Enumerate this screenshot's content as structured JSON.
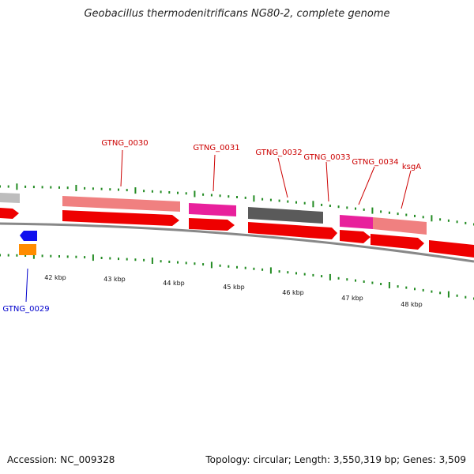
{
  "title": "Geobacillus thermodenitrificans NG80-2, complete genome",
  "footer": {
    "accession": "Accession: NC_009328",
    "summary": "Topology: circular; Length: 3,550,319 bp; Genes: 3,509"
  },
  "colors": {
    "backbone": "#888888",
    "tick": "#228b22",
    "label_red": "#cc0000",
    "label_blue": "#0000cc",
    "red_gene": "#ee0000",
    "salmon": "#f08080",
    "magenta": "#e8209c",
    "dark_gray": "#5a5a5a",
    "light_gray": "#bdbdbd",
    "blue_gene": "#1010ee",
    "orange_gene": "#ff8c00"
  },
  "scale_labels": [
    "42 kbp",
    "43 kbp",
    "44 kbp",
    "45 kbp",
    "46 kbp",
    "47 kbp",
    "48 kbp"
  ],
  "gene_labels": [
    {
      "text": "GTNG_0030",
      "color": "red"
    },
    {
      "text": "GTNG_0031",
      "color": "red"
    },
    {
      "text": "GTNG_0032",
      "color": "red"
    },
    {
      "text": "GTNG_0033",
      "color": "red"
    },
    {
      "text": "GTNG_0034",
      "color": "red"
    },
    {
      "text": "ksgA",
      "color": "red"
    },
    {
      "text": "GTNG_0029",
      "color": "blue"
    }
  ]
}
